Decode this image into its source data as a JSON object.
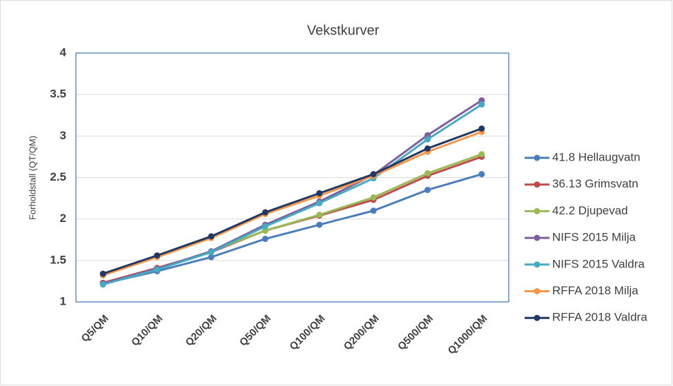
{
  "chart_data": {
    "type": "line",
    "title": "Vekstkurver",
    "y_label": "Forholdstall (QT/QM)",
    "categories": [
      "Q5/QM",
      "Q10/QM",
      "Q20/QM",
      "Q50/QM",
      "Q100/QM",
      "Q200/QM",
      "Q500/QM",
      "Q1000/QM"
    ],
    "series": [
      {
        "name": "41.8 Hellaugvatn",
        "color": "#4a7ebb",
        "values": [
          1.22,
          1.37,
          1.54,
          1.76,
          1.93,
          2.1,
          2.35,
          2.54
        ]
      },
      {
        "name": "36.13 Grimsvatn",
        "color": "#be4b48",
        "values": [
          1.23,
          1.41,
          1.6,
          1.86,
          2.04,
          2.23,
          2.52,
          2.75
        ]
      },
      {
        "name": "42.2 Djupevad",
        "color": "#98b954",
        "values": [
          1.21,
          1.4,
          1.61,
          1.86,
          2.05,
          2.26,
          2.55,
          2.78
        ]
      },
      {
        "name": "NIFS 2015 Milja",
        "color": "#7d60a0",
        "values": [
          1.22,
          1.4,
          1.61,
          1.93,
          2.21,
          2.53,
          3.01,
          3.43
        ]
      },
      {
        "name": "NIFS 2015 Valdra",
        "color": "#46aac5",
        "values": [
          1.21,
          1.39,
          1.6,
          1.91,
          2.19,
          2.49,
          2.96,
          3.38
        ]
      },
      {
        "name": "RFFA 2018 Milja",
        "color": "#f79646",
        "values": [
          1.32,
          1.54,
          1.77,
          2.06,
          2.28,
          2.52,
          2.81,
          3.05
        ]
      },
      {
        "name": "RFFA 2018 Valdra",
        "color": "#1f3864",
        "values": [
          1.34,
          1.56,
          1.79,
          2.08,
          2.31,
          2.54,
          2.85,
          3.09
        ]
      }
    ],
    "ylim": [
      1,
      4
    ],
    "yticks": [
      1,
      1.5,
      2,
      2.5,
      3,
      3.5,
      4
    ],
    "grid": true,
    "legend": "right"
  }
}
